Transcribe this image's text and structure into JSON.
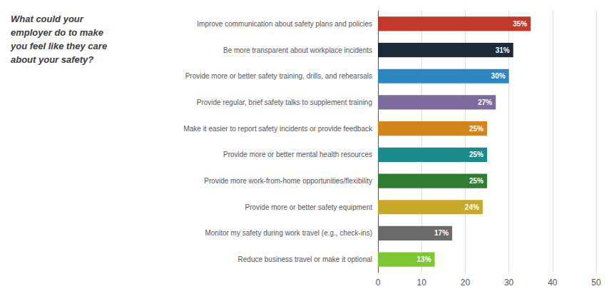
{
  "chart_data": {
    "type": "bar",
    "orientation": "horizontal",
    "title": "What could your\nemployer do to make\nyou feel like they care\nabout your safety?",
    "categories": [
      "Improve communication about safety plans and policies",
      "Be more transparent about workplace incidents",
      "Provide more or better safety training, drills, and rehearsals",
      "Provide regular, brief safety talks to supplement training",
      "Make it easier to report safety incidents or provide feedback",
      "Provide more or better mental health resources",
      "Provide more work-from-home opportunities/flexibility",
      "Provide more or better safety equipment",
      "Monitor my safety during work travel (e.g., check-ins)",
      "Reduce business travel or make it optional"
    ],
    "values": [
      35,
      31,
      30,
      27,
      25,
      25,
      25,
      24,
      17,
      13
    ],
    "value_labels": [
      "35%",
      "31%",
      "30%",
      "27%",
      "25%",
      "25%",
      "25%",
      "24%",
      "17%",
      "13%"
    ],
    "data_labels": true,
    "colors": [
      "#c0392b",
      "#1c2b3a",
      "#2e86c1",
      "#7d6b9e",
      "#d4851a",
      "#1a8a8a",
      "#2e7d32",
      "#c8a828",
      "#6b6b6b",
      "#7dc832"
    ],
    "xlim": [
      0,
      50
    ],
    "xticks": [
      0,
      10,
      20,
      30,
      40,
      50
    ],
    "grid": true
  }
}
